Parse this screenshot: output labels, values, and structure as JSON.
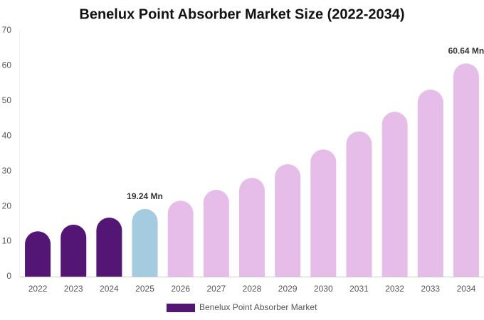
{
  "chart_data": {
    "type": "bar",
    "title": "Benelux Point Absorber Market Size (2022-2034)",
    "categories": [
      "2022",
      "2023",
      "2024",
      "2025",
      "2026",
      "2027",
      "2028",
      "2029",
      "2030",
      "2031",
      "2032",
      "2033",
      "2034"
    ],
    "series": [
      {
        "name": "Benelux Point Absorber Market",
        "color": "#541675",
        "values": [
          12.9,
          14.8,
          16.8,
          19.24,
          21.6,
          24.7,
          28.1,
          32.0,
          36.2,
          41.3,
          46.9,
          53.2,
          60.64
        ],
        "value_labels": [
          null,
          null,
          null,
          "19.24 Mn",
          null,
          null,
          null,
          null,
          null,
          null,
          null,
          null,
          "60.64 Mn"
        ],
        "colors": [
          "#541675",
          "#541675",
          "#541675",
          "#a5cbe0",
          "#e6bde8",
          "#e6bde8",
          "#e6bde8",
          "#e6bde8",
          "#e6bde8",
          "#e6bde8",
          "#e6bde8",
          "#e6bde8",
          "#e6bde8"
        ]
      }
    ],
    "ylim": [
      0,
      70
    ],
    "yticks": [
      0,
      10,
      20,
      30,
      40,
      50,
      60,
      70
    ],
    "grid": false
  }
}
